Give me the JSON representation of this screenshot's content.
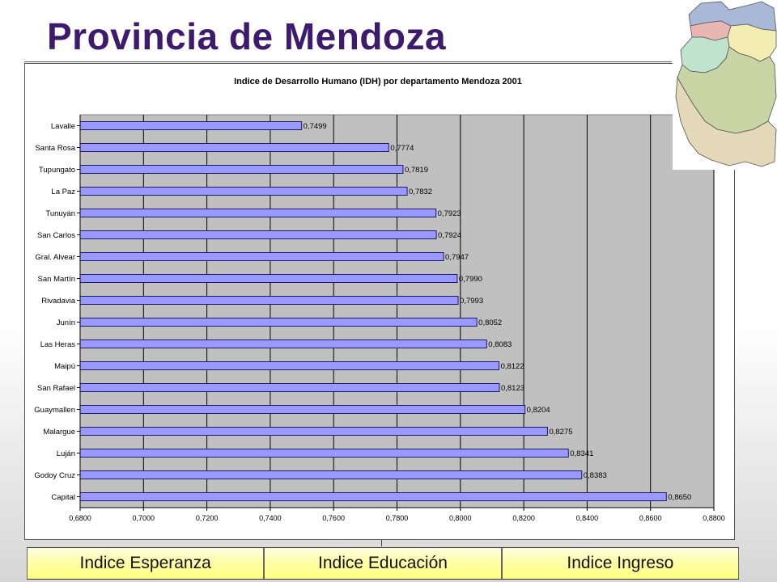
{
  "slide": {
    "title": "Provincia de Mendoza"
  },
  "tabs": [
    {
      "label": "Indice Esperanza"
    },
    {
      "label": "Indice Educación"
    },
    {
      "label": "Indice Ingreso"
    }
  ],
  "map": {
    "icon": "mendoza-departments-map-icon",
    "colors": [
      "#a9b8d6",
      "#e8b7b4",
      "#f3edb3",
      "#bfe3cc",
      "#c9d4a5",
      "#e3d9b8"
    ]
  },
  "chart_data": {
    "type": "bar",
    "orientation": "horizontal",
    "title": "Indice de Desarrollo Humano (IDH) por departamento Mendoza 2001",
    "categories": [
      "Lavalle",
      "Santa Rosa",
      "Tupungato",
      "La Paz",
      "Tunuyán",
      "San Carlos",
      "Gral. Alvear",
      "San Martín",
      "Rivadavia",
      "Junín",
      "Las Heras",
      "Maipú",
      "San Rafael",
      "Guaymallen",
      "Malargue",
      "Luján",
      "Godoy Cruz",
      "Capital"
    ],
    "values": [
      0.7499,
      0.7774,
      0.7819,
      0.7832,
      0.7923,
      0.7924,
      0.7947,
      0.799,
      0.7993,
      0.8052,
      0.8083,
      0.8122,
      0.8123,
      0.8204,
      0.8275,
      0.8341,
      0.8383,
      0.865
    ],
    "value_labels": [
      "0,7499",
      "0,7774",
      "0,7819",
      "0,7832",
      "0,7923",
      "0,7924",
      "0,7947",
      "0,7990",
      "0,7993",
      "0,8052",
      "0,8083",
      "0,8122",
      "0,8123",
      "0,8204",
      "0,8275",
      "0,8341",
      "0,8383",
      "0,8650"
    ],
    "xlim": [
      0.68,
      0.88
    ],
    "xticks": [
      "0,6800",
      "0,7000",
      "0,7200",
      "0,7400",
      "0,7600",
      "0,7800",
      "0,8000",
      "0,8200",
      "0,8400",
      "0,8600",
      "0,8800"
    ],
    "xlabel": "",
    "ylabel": "",
    "grid": true,
    "colors": {
      "bar": "#9999ff",
      "bar_edge": "#1a1a66",
      "plot_bg": "#c0c0c0",
      "grid": "#000000"
    }
  }
}
